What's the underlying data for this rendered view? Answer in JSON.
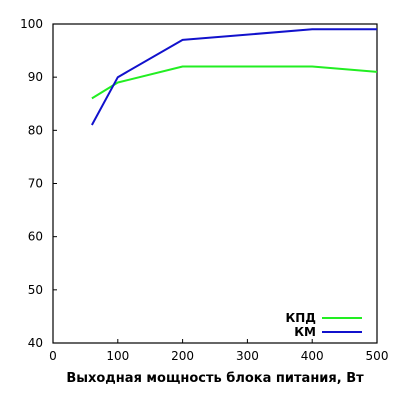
{
  "chart_data": {
    "type": "line",
    "title": "",
    "xlabel": "Выходная мощность блока питания, Вт",
    "ylabel": "",
    "xlim": [
      0,
      500
    ],
    "ylim": [
      40,
      100
    ],
    "xticks": [
      0,
      100,
      200,
      300,
      400,
      500
    ],
    "yticks": [
      40,
      50,
      60,
      70,
      80,
      90,
      100
    ],
    "grid": false,
    "legend_position": "bottom-right",
    "series": [
      {
        "name": "КПД",
        "color": "#22ee22",
        "points": [
          [
            60,
            86
          ],
          [
            100,
            89
          ],
          [
            200,
            92
          ],
          [
            400,
            92
          ],
          [
            500,
            91
          ]
        ]
      },
      {
        "name": "КМ",
        "color": "#1111cc",
        "points": [
          [
            60,
            81
          ],
          [
            100,
            90
          ],
          [
            200,
            97
          ],
          [
            400,
            99
          ],
          [
            500,
            99
          ]
        ]
      }
    ]
  }
}
